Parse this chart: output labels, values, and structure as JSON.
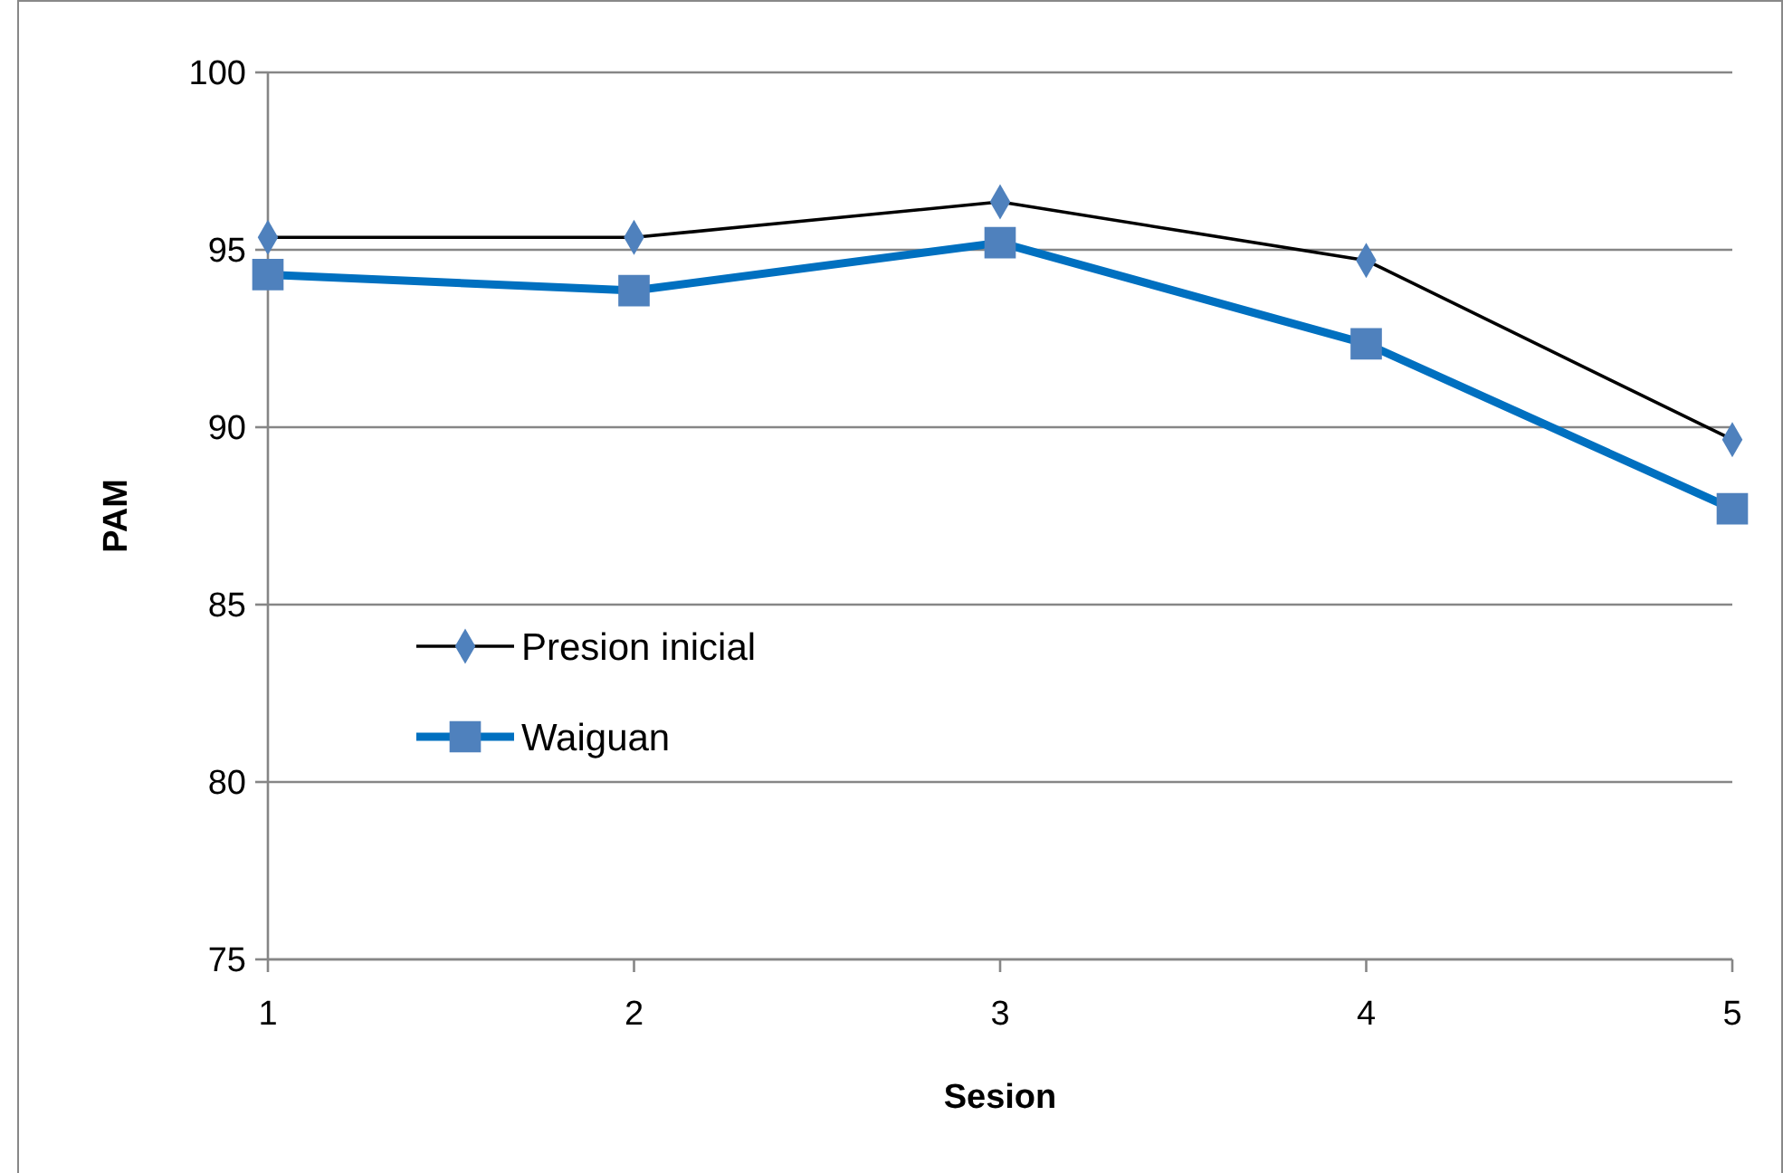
{
  "chart_data": {
    "type": "line",
    "xlabel": "Sesion",
    "ylabel": "PAM",
    "x": [
      1,
      2,
      3,
      4,
      5
    ],
    "xlim": [
      1,
      5
    ],
    "xticks": [
      1,
      2,
      3,
      4,
      5
    ],
    "ylim": [
      75,
      100
    ],
    "yticks": [
      75,
      80,
      85,
      90,
      95,
      100
    ],
    "grid": "y",
    "legend": "center left",
    "series": [
      {
        "name": "Presion inicial",
        "color": "#000000",
        "marker": "diamond",
        "values": [
          95.35,
          95.35,
          96.35,
          94.7,
          89.65
        ]
      },
      {
        "name": "Waiguan",
        "color": "#0070c0",
        "marker": "square",
        "values": [
          94.3,
          93.85,
          95.2,
          92.35,
          87.7
        ]
      }
    ]
  }
}
